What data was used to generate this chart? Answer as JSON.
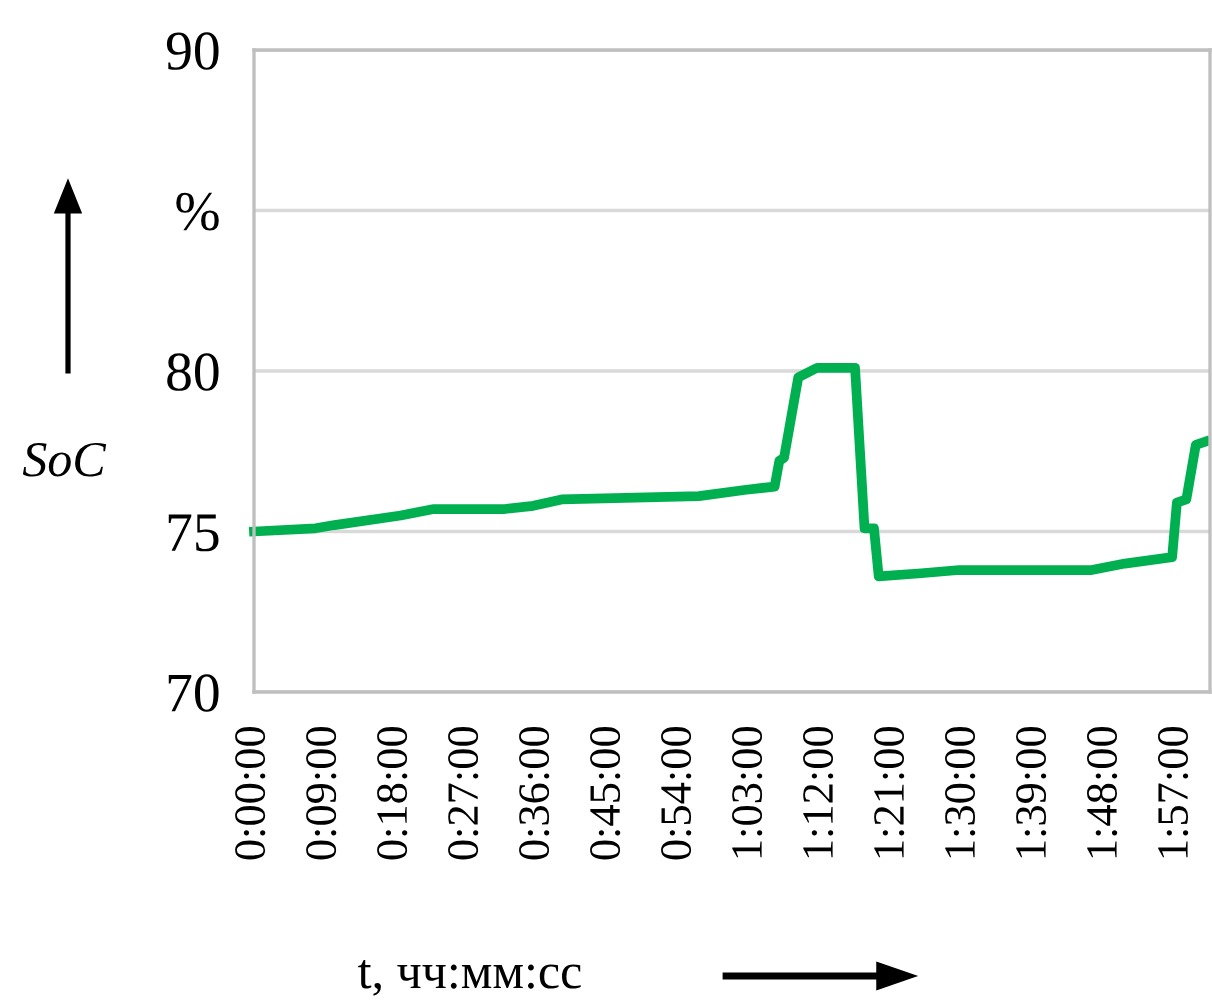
{
  "chart_data": {
    "type": "line",
    "xlabel": "t, чч:мм:сс",
    "ylabel": "SoC",
    "x": [
      0.0,
      0.13,
      0.17,
      0.31,
      0.38,
      0.53,
      0.59,
      0.65,
      0.94,
      1.04,
      1.1,
      1.11,
      1.12,
      1.15,
      1.19,
      1.27,
      1.29,
      1.31,
      1.32,
      1.41,
      1.49,
      1.77,
      1.84,
      1.94,
      1.95,
      1.97,
      1.99,
      2.01
    ],
    "series": [
      {
        "color": "#00b050",
        "values": [
          75.0,
          75.1,
          75.2,
          75.5,
          75.7,
          75.7,
          75.8,
          76.0,
          76.1,
          76.3,
          76.4,
          77.2,
          77.3,
          79.8,
          80.1,
          80.1,
          75.1,
          75.1,
          73.6,
          73.7,
          73.8,
          73.8,
          74.0,
          74.2,
          75.9,
          76.0,
          77.7,
          77.8
        ]
      }
    ],
    "xlim": [
      0,
      2.02
    ],
    "xticks": [
      {
        "value": 0,
        "label": "0:00:00"
      },
      {
        "value": 0.15,
        "label": "0:09:00"
      },
      {
        "value": 0.3,
        "label": "0:18:00"
      },
      {
        "value": 0.45,
        "label": "0:27:00"
      },
      {
        "value": 0.6,
        "label": "0:36:00"
      },
      {
        "value": 0.75,
        "label": "0:45:00"
      },
      {
        "value": 0.9,
        "label": "0:54:00"
      },
      {
        "value": 1.05,
        "label": "1:03:00"
      },
      {
        "value": 1.2,
        "label": "1:12:00"
      },
      {
        "value": 1.35,
        "label": "1:21:00"
      },
      {
        "value": 1.5,
        "label": "1:30:00"
      },
      {
        "value": 1.65,
        "label": "1:39:00"
      },
      {
        "value": 1.8,
        "label": "1:48:00"
      },
      {
        "value": 1.95,
        "label": "1:57:00"
      }
    ],
    "ylim": [
      70,
      90
    ],
    "yticks": [
      70,
      75,
      80,
      {
        "value": 85,
        "label": "%"
      },
      90
    ],
    "grid": "y",
    "legend": false,
    "marker": "none",
    "line_style": "solid"
  }
}
